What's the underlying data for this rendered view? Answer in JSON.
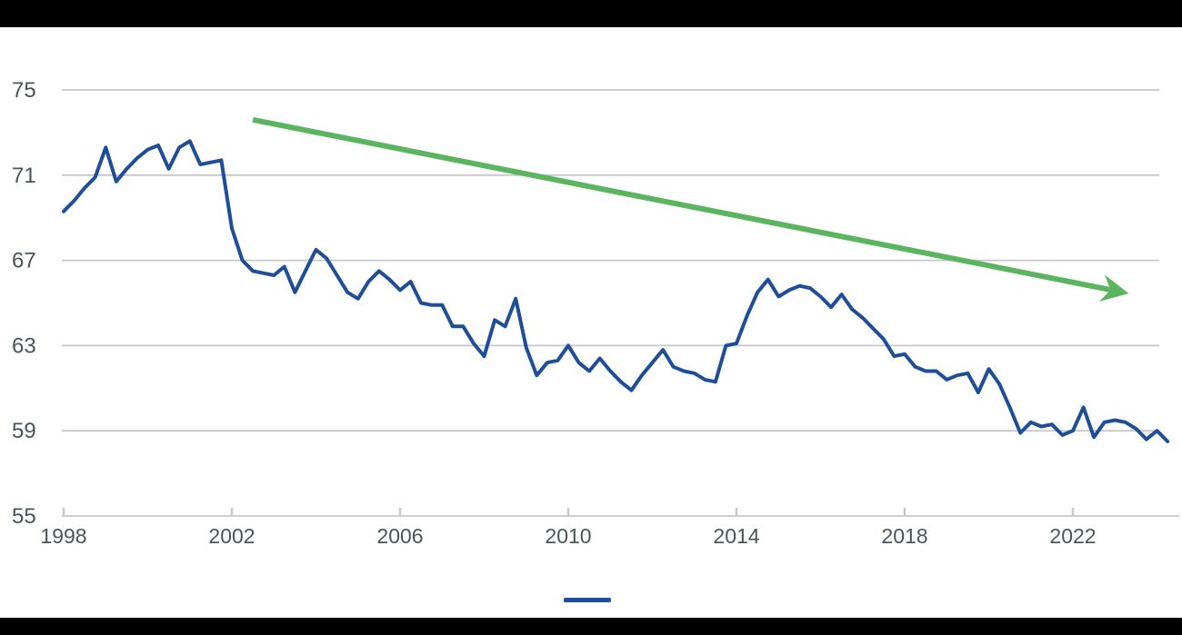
{
  "page": {
    "background": "#ffffff",
    "top_bar": {
      "color": "#000000"
    },
    "bottom_bar": {
      "color": "#000000"
    }
  },
  "chart_data": {
    "type": "line",
    "title": "",
    "xlabel": "",
    "ylabel": "",
    "frequency": "quarterly",
    "x_start": 1998,
    "x_step": 0.25,
    "xlim": [
      1998,
      2024.4
    ],
    "ylim": [
      55,
      75
    ],
    "grid": "horizontal-only",
    "gridline_color": "#c6c8ca",
    "tick_label_color": "#46555f",
    "x_ticks": [
      1998,
      2002,
      2006,
      2010,
      2014,
      2018,
      2022
    ],
    "y_ticks": [
      75,
      71,
      67,
      63,
      59,
      55
    ],
    "series": [
      {
        "name": "main-series",
        "color": "#1f4e99",
        "values": [
          69.3,
          69.8,
          70.4,
          70.9,
          72.3,
          70.7,
          71.3,
          71.8,
          72.2,
          72.4,
          71.3,
          72.3,
          72.6,
          71.5,
          71.6,
          71.7,
          68.5,
          67.0,
          66.5,
          66.4,
          66.3,
          66.7,
          65.5,
          66.5,
          67.5,
          67.1,
          66.3,
          65.5,
          65.2,
          66.0,
          66.5,
          66.1,
          65.6,
          66.0,
          65.0,
          64.9,
          64.9,
          63.9,
          63.9,
          63.1,
          62.5,
          64.2,
          63.9,
          65.2,
          62.9,
          61.6,
          62.2,
          62.3,
          63.0,
          62.2,
          61.8,
          62.4,
          61.8,
          61.3,
          60.9,
          61.6,
          62.2,
          62.8,
          62.0,
          61.8,
          61.7,
          61.4,
          61.3,
          63.0,
          63.1,
          64.4,
          65.5,
          66.1,
          65.3,
          65.6,
          65.8,
          65.7,
          65.3,
          64.8,
          65.4,
          64.7,
          64.3,
          63.8,
          63.3,
          62.5,
          62.6,
          62.0,
          61.8,
          61.8,
          61.4,
          61.6,
          61.7,
          60.8,
          61.9,
          61.2,
          60.1,
          58.9,
          59.4,
          59.2,
          59.3,
          58.8,
          59.0,
          60.1,
          58.7,
          59.4,
          59.5,
          59.4,
          59.1,
          58.6,
          59.0,
          58.5
        ]
      }
    ],
    "trend_arrow": {
      "color": "#5bb55f",
      "start": {
        "x": 2002.5,
        "y": 73.6
      },
      "end": {
        "x": 2023.2,
        "y": 65.5
      }
    },
    "legend": {
      "position": "bottom-center",
      "items": [
        {
          "label": "",
          "swatch": "line",
          "color": "#1f4e99"
        }
      ]
    }
  }
}
